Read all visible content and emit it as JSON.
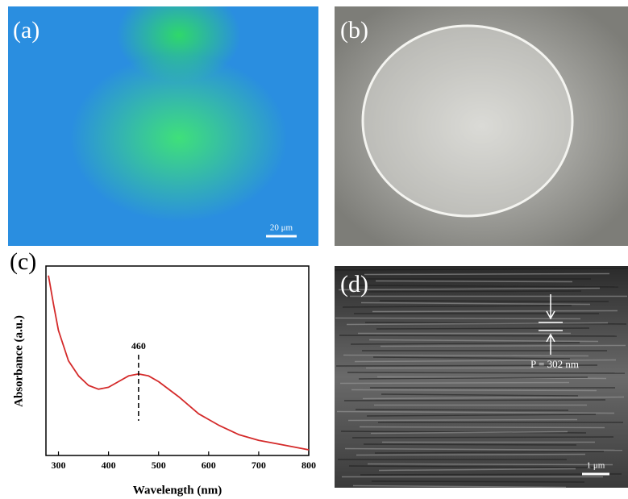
{
  "panels": {
    "a": {
      "label": "(a)",
      "scale_bar": "20 μm"
    },
    "b": {
      "label": "(b)"
    },
    "c": {
      "label": "(c)"
    },
    "d": {
      "label": "(d)",
      "annotation": "P = 302 nm",
      "scale_bar": "1 μm"
    }
  },
  "chart_data": {
    "type": "line",
    "x_label": "Wavelength (nm)",
    "y_label": "Absorbance (a.u.)",
    "x": [
      280,
      290,
      300,
      320,
      340,
      360,
      380,
      400,
      420,
      440,
      460,
      480,
      500,
      540,
      580,
      620,
      660,
      700,
      740,
      780,
      800
    ],
    "series": [
      {
        "color": "#d42a2a",
        "values": [
          0.95,
          0.8,
          0.66,
          0.5,
          0.42,
          0.37,
          0.35,
          0.36,
          0.39,
          0.42,
          0.43,
          0.42,
          0.39,
          0.31,
          0.22,
          0.16,
          0.11,
          0.08,
          0.06,
          0.04,
          0.03
        ]
      }
    ],
    "xlim": [
      275,
      800
    ],
    "xticks": [
      300,
      400,
      500,
      600,
      700,
      800
    ],
    "ylim": [
      0,
      1
    ],
    "annotation": {
      "x": 460,
      "label": "460"
    }
  }
}
